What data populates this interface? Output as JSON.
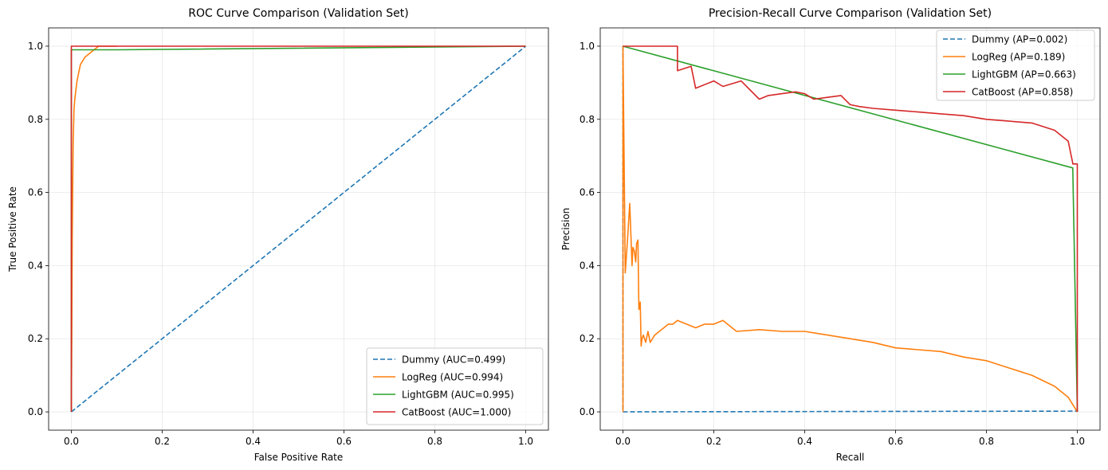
{
  "chart_data": [
    {
      "type": "line",
      "title": "ROC Curve Comparison (Validation Set)",
      "xlabel": "False Positive Rate",
      "ylabel": "True Positive Rate",
      "xlim": [
        -0.05,
        1.05
      ],
      "ylim": [
        -0.05,
        1.05
      ],
      "xticks": [
        0.0,
        0.2,
        0.4,
        0.6,
        0.8,
        1.0
      ],
      "yticks": [
        0.0,
        0.2,
        0.4,
        0.6,
        0.8,
        1.0
      ],
      "tick_labels_x": [
        "0.0",
        "0.2",
        "0.4",
        "0.6",
        "0.8",
        "1.0"
      ],
      "tick_labels_y": [
        "0.0",
        "0.2",
        "0.4",
        "0.6",
        "0.8",
        "1.0"
      ],
      "grid": true,
      "legend_position": "lower-right",
      "series": [
        {
          "name": "Dummy (AUC=0.499)",
          "color": "#1f77b4",
          "dash": true,
          "x": [
            0.0,
            1.0
          ],
          "y": [
            0.0,
            1.0
          ]
        },
        {
          "name": "LogReg (AUC=0.994)",
          "color": "#ff7f0e",
          "dash": false,
          "x": [
            0.0,
            0.001,
            0.002,
            0.003,
            0.004,
            0.005,
            0.006,
            0.008,
            0.01,
            0.012,
            0.015,
            0.02,
            0.025,
            0.03,
            0.04,
            0.05,
            0.06,
            0.1
          ],
          "y": [
            0.0,
            0.23,
            0.47,
            0.61,
            0.74,
            0.78,
            0.83,
            0.86,
            0.88,
            0.9,
            0.92,
            0.95,
            0.96,
            0.97,
            0.98,
            0.99,
            1.0,
            1.0
          ]
        },
        {
          "name": "LightGBM (AUC=0.995)",
          "color": "#2ca02c",
          "dash": false,
          "x": [
            0.0,
            0.0,
            0.1,
            1.0
          ],
          "y": [
            0.0,
            0.99,
            0.99,
            1.0
          ]
        },
        {
          "name": "CatBoost (AUC=1.000)",
          "color": "#d62728",
          "dash": false,
          "x": [
            0.0,
            0.0,
            1.0
          ],
          "y": [
            0.0,
            1.0,
            1.0
          ]
        }
      ]
    },
    {
      "type": "line",
      "title": "Precision-Recall Curve Comparison (Validation Set)",
      "xlabel": "Recall",
      "ylabel": "Precision",
      "xlim": [
        -0.05,
        1.05
      ],
      "ylim": [
        -0.05,
        1.05
      ],
      "xticks": [
        0.0,
        0.2,
        0.4,
        0.6,
        0.8,
        1.0
      ],
      "yticks": [
        0.0,
        0.2,
        0.4,
        0.6,
        0.8,
        1.0
      ],
      "tick_labels_x": [
        "0.0",
        "0.2",
        "0.4",
        "0.6",
        "0.8",
        "1.0"
      ],
      "tick_labels_y": [
        "0.0",
        "0.2",
        "0.4",
        "0.6",
        "0.8",
        "1.0"
      ],
      "grid": true,
      "legend_position": "upper-right",
      "series": [
        {
          "name": "Dummy (AP=0.002)",
          "color": "#1f77b4",
          "dash": true,
          "x": [
            0.0,
            0.0,
            1.0,
            1.0
          ],
          "y": [
            1.0,
            0.0,
            0.002,
            0.0
          ]
        },
        {
          "name": "LogReg (AP=0.189)",
          "color": "#ff7f0e",
          "dash": false,
          "x": [
            0.0,
            0.0,
            0.005,
            0.01,
            0.015,
            0.02,
            0.022,
            0.025,
            0.028,
            0.03,
            0.033,
            0.035,
            0.038,
            0.04,
            0.042,
            0.045,
            0.05,
            0.055,
            0.06,
            0.065,
            0.07,
            0.08,
            0.09,
            0.1,
            0.11,
            0.12,
            0.14,
            0.16,
            0.18,
            0.2,
            0.22,
            0.23,
            0.25,
            0.3,
            0.35,
            0.4,
            0.45,
            0.5,
            0.55,
            0.6,
            0.65,
            0.7,
            0.75,
            0.8,
            0.85,
            0.9,
            0.95,
            0.98,
            1.0
          ],
          "y": [
            0.0,
            1.0,
            0.38,
            0.47,
            0.57,
            0.4,
            0.45,
            0.44,
            0.41,
            0.46,
            0.47,
            0.28,
            0.3,
            0.18,
            0.2,
            0.21,
            0.19,
            0.22,
            0.19,
            0.2,
            0.21,
            0.22,
            0.23,
            0.24,
            0.24,
            0.25,
            0.24,
            0.23,
            0.24,
            0.24,
            0.25,
            0.24,
            0.22,
            0.225,
            0.22,
            0.22,
            0.21,
            0.2,
            0.19,
            0.175,
            0.17,
            0.165,
            0.15,
            0.14,
            0.12,
            0.1,
            0.07,
            0.04,
            0.0
          ]
        },
        {
          "name": "LightGBM (AP=0.663)",
          "color": "#2ca02c",
          "dash": false,
          "x": [
            0.0,
            0.99,
            1.0
          ],
          "y": [
            1.0,
            0.667,
            0.002
          ]
        },
        {
          "name": "CatBoost (AP=0.858)",
          "color": "#d62728",
          "dash": false,
          "x": [
            0.0,
            0.12,
            0.12,
            0.15,
            0.16,
            0.2,
            0.22,
            0.26,
            0.3,
            0.32,
            0.35,
            0.38,
            0.4,
            0.42,
            0.45,
            0.48,
            0.5,
            0.52,
            0.55,
            0.6,
            0.65,
            0.7,
            0.75,
            0.8,
            0.85,
            0.9,
            0.95,
            0.98,
            0.99,
            0.99,
            1.0,
            1.0
          ],
          "y": [
            1.0,
            1.0,
            0.933,
            0.945,
            0.885,
            0.905,
            0.89,
            0.905,
            0.855,
            0.865,
            0.87,
            0.875,
            0.87,
            0.855,
            0.86,
            0.865,
            0.84,
            0.835,
            0.83,
            0.825,
            0.82,
            0.815,
            0.81,
            0.8,
            0.795,
            0.79,
            0.77,
            0.74,
            0.68,
            0.678,
            0.678,
            0.0
          ]
        }
      ]
    }
  ]
}
